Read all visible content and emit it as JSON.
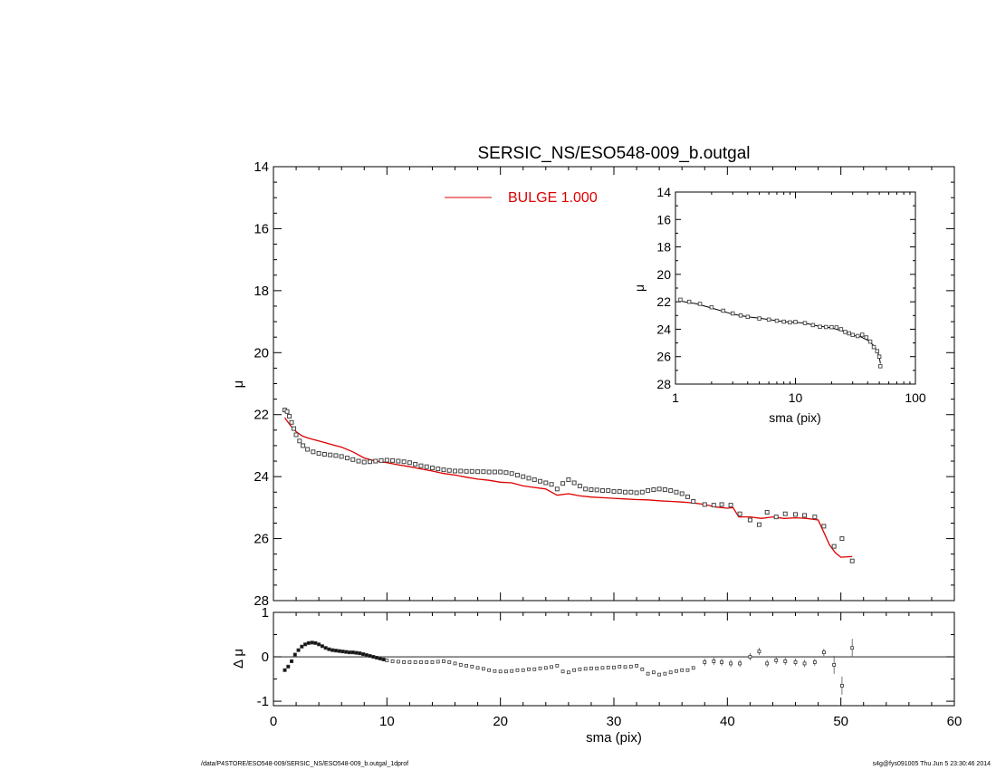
{
  "chart_data": [
    {
      "type": "scatter",
      "title": "SERSIC_NS/ESO548-009_b.outgal",
      "xlabel": "",
      "ylabel": "μ",
      "xlim": [
        0,
        60
      ],
      "ylim": [
        28,
        14
      ],
      "y_inverted": true,
      "yticks": [
        "14",
        "16",
        "18",
        "20",
        "22",
        "24",
        "26",
        "28"
      ],
      "legend": {
        "label": "BULGE  1.000",
        "color": "#dd0000",
        "placement": "top-center"
      },
      "series": [
        {
          "kind": "points",
          "marker": "square",
          "x": [
            1,
            1.2,
            1.4,
            1.6,
            1.8,
            2,
            2.3,
            2.6,
            3,
            3.5,
            4,
            4.5,
            5,
            5.5,
            6,
            6.5,
            7,
            7.5,
            8,
            8.5,
            9,
            9.5,
            10,
            10.5,
            11,
            11.5,
            12,
            12.5,
            13,
            13.5,
            14,
            14.5,
            15,
            15.5,
            16,
            16.5,
            17,
            17.5,
            18,
            18.5,
            19,
            19.5,
            20,
            20.5,
            21,
            21.5,
            22,
            22.5,
            23,
            23.5,
            24,
            24.5,
            25,
            25.5,
            26,
            26.5,
            27,
            27.5,
            28,
            28.5,
            29,
            29.5,
            30,
            30.5,
            31,
            31.5,
            32,
            32.5,
            33,
            33.5,
            34,
            34.5,
            35,
            35.5,
            36,
            36.5,
            37,
            38,
            38.8,
            39.5,
            40.3,
            41.1,
            42,
            42.8,
            43.5,
            44.3,
            45.1,
            46,
            46.8,
            47.7,
            48.5,
            49.4,
            50.1,
            51
          ],
          "y": [
            21.85,
            21.9,
            22.05,
            22.25,
            22.45,
            22.65,
            22.85,
            23.0,
            23.12,
            23.2,
            23.25,
            23.28,
            23.3,
            23.32,
            23.35,
            23.4,
            23.45,
            23.5,
            23.53,
            23.52,
            23.5,
            23.48,
            23.47,
            23.48,
            23.5,
            23.52,
            23.55,
            23.6,
            23.65,
            23.68,
            23.72,
            23.75,
            23.78,
            23.8,
            23.82,
            23.82,
            23.83,
            23.83,
            23.84,
            23.84,
            23.85,
            23.85,
            23.85,
            23.87,
            23.9,
            23.95,
            24.0,
            24.05,
            24.1,
            24.15,
            24.2,
            24.25,
            24.4,
            24.22,
            24.1,
            24.2,
            24.3,
            24.4,
            24.42,
            24.43,
            24.45,
            24.45,
            24.48,
            24.48,
            24.5,
            24.5,
            24.52,
            24.5,
            24.45,
            24.42,
            24.4,
            24.42,
            24.45,
            24.5,
            24.55,
            24.65,
            24.8,
            24.9,
            24.92,
            24.9,
            24.92,
            25.2,
            25.4,
            25.55,
            25.15,
            25.3,
            25.2,
            25.22,
            25.25,
            25.3,
            25.6,
            26.25,
            26.0,
            26.72
          ]
        },
        {
          "kind": "line",
          "color": "#dd0000",
          "x": [
            1,
            1.5,
            2,
            2.5,
            3,
            3.5,
            4,
            5,
            6,
            7,
            8,
            9,
            10,
            11,
            12,
            13,
            14,
            15,
            16,
            17,
            18,
            19,
            20,
            21,
            22,
            23,
            24,
            24.5,
            25,
            26,
            27,
            28,
            29,
            30,
            31,
            32,
            33,
            34,
            35,
            36,
            37,
            38,
            39,
            40,
            40.5,
            41,
            42,
            43,
            44,
            45,
            46,
            47,
            48,
            48.5,
            49,
            49.5,
            50,
            51
          ],
          "y": [
            22.1,
            22.35,
            22.55,
            22.68,
            22.75,
            22.8,
            22.85,
            22.95,
            23.05,
            23.2,
            23.4,
            23.5,
            23.55,
            23.62,
            23.68,
            23.75,
            23.82,
            23.9,
            23.95,
            24.02,
            24.08,
            24.12,
            24.18,
            24.2,
            24.3,
            24.35,
            24.4,
            24.5,
            24.6,
            24.55,
            24.62,
            24.66,
            24.68,
            24.7,
            24.72,
            24.74,
            24.75,
            24.78,
            24.8,
            24.82,
            24.85,
            24.9,
            24.98,
            25.02,
            25.0,
            25.3,
            25.3,
            25.35,
            25.3,
            25.35,
            25.33,
            25.35,
            25.4,
            25.8,
            26.2,
            26.45,
            26.6,
            26.58
          ]
        }
      ]
    },
    {
      "type": "scatter",
      "title": "",
      "xlabel": "sma (pix)",
      "ylabel": "μ",
      "x_scale": "log",
      "xlim": [
        1,
        100
      ],
      "ylim": [
        28,
        14
      ],
      "y_inverted": true,
      "xticks": [
        "1",
        "10",
        "100"
      ],
      "yticks": [
        "14",
        "16",
        "18",
        "20",
        "22",
        "24",
        "26",
        "28"
      ],
      "series": [
        {
          "kind": "points",
          "marker": "square",
          "x": [
            1.1,
            1.3,
            1.6,
            2,
            2.5,
            3,
            3.5,
            4,
            5,
            6,
            7,
            8,
            9,
            10,
            12,
            14,
            16,
            18,
            20,
            22,
            24,
            26,
            28,
            30,
            33,
            36,
            39,
            42,
            45,
            48,
            50,
            51
          ],
          "y": [
            21.85,
            22.0,
            22.15,
            22.4,
            22.65,
            22.85,
            23.0,
            23.1,
            23.22,
            23.3,
            23.38,
            23.45,
            23.5,
            23.47,
            23.55,
            23.7,
            23.82,
            23.84,
            23.85,
            23.87,
            24.0,
            24.2,
            24.3,
            24.42,
            24.5,
            24.4,
            24.6,
            24.9,
            25.3,
            25.6,
            26.0,
            26.7
          ]
        },
        {
          "kind": "line",
          "color": "#000000",
          "x": [
            1.1,
            1.5,
            2,
            3,
            4,
            5,
            6,
            8,
            10,
            12,
            15,
            20,
            25,
            30,
            35,
            40,
            45,
            48,
            50,
            51
          ],
          "y": [
            21.95,
            22.15,
            22.45,
            22.9,
            23.1,
            23.2,
            23.3,
            23.45,
            23.5,
            23.55,
            23.75,
            23.9,
            24.15,
            24.45,
            24.55,
            24.8,
            25.2,
            25.6,
            26.0,
            26.5
          ]
        }
      ]
    },
    {
      "type": "scatter",
      "title": "",
      "xlabel": "sma (pix)",
      "ylabel": "Δ μ",
      "xlim": [
        0,
        60
      ],
      "ylim": [
        -1.1,
        1.0
      ],
      "xticks": [
        "0",
        "10",
        "20",
        "30",
        "40",
        "50",
        "60"
      ],
      "yticks": [
        "-1",
        "0",
        "1"
      ],
      "reference_line": 0,
      "series": [
        {
          "kind": "points",
          "marker": "square-errorbar",
          "x": [
            1,
            1.3,
            1.6,
            1.9,
            2.2,
            2.5,
            2.8,
            3.1,
            3.4,
            3.7,
            4,
            4.3,
            4.6,
            4.9,
            5.2,
            5.5,
            5.8,
            6.1,
            6.4,
            6.7,
            7,
            7.3,
            7.6,
            7.9,
            8.2,
            8.5,
            8.8,
            9.1,
            9.4,
            9.7,
            10,
            10.5,
            11,
            11.5,
            12,
            12.5,
            13,
            13.5,
            14,
            14.5,
            15,
            15.5,
            16,
            16.5,
            17,
            17.5,
            18,
            18.5,
            19,
            19.5,
            20,
            20.5,
            21,
            21.5,
            22,
            22.5,
            23,
            23.5,
            24,
            24.5,
            25,
            25.5,
            26,
            26.5,
            27,
            27.5,
            28,
            28.5,
            29,
            29.5,
            30,
            30.5,
            31,
            31.5,
            32,
            32.5,
            33,
            33.5,
            34,
            34.5,
            35,
            35.5,
            36,
            36.5,
            37,
            38,
            38.8,
            39.5,
            40.3,
            41.1,
            42,
            42.8,
            43.5,
            44.3,
            45.1,
            46,
            46.8,
            47.7,
            48.5,
            49.4,
            50.1,
            51
          ],
          "y": [
            -0.3,
            -0.22,
            -0.1,
            0.05,
            0.15,
            0.23,
            0.28,
            0.31,
            0.32,
            0.31,
            0.28,
            0.24,
            0.2,
            0.17,
            0.15,
            0.14,
            0.13,
            0.12,
            0.11,
            0.1,
            0.1,
            0.09,
            0.08,
            0.06,
            0.04,
            0.02,
            0.0,
            -0.02,
            -0.04,
            -0.06,
            -0.08,
            -0.1,
            -0.11,
            -0.12,
            -0.12,
            -0.12,
            -0.12,
            -0.12,
            -0.12,
            -0.11,
            -0.1,
            -0.12,
            -0.15,
            -0.18,
            -0.2,
            -0.22,
            -0.25,
            -0.27,
            -0.3,
            -0.32,
            -0.33,
            -0.33,
            -0.32,
            -0.3,
            -0.3,
            -0.28,
            -0.28,
            -0.26,
            -0.25,
            -0.23,
            -0.2,
            -0.33,
            -0.35,
            -0.3,
            -0.28,
            -0.27,
            -0.26,
            -0.26,
            -0.25,
            -0.24,
            -0.24,
            -0.22,
            -0.23,
            -0.22,
            -0.2,
            -0.28,
            -0.38,
            -0.35,
            -0.4,
            -0.38,
            -0.35,
            -0.32,
            -0.3,
            -0.3,
            -0.25,
            -0.12,
            -0.1,
            -0.12,
            -0.15,
            -0.15,
            0.0,
            0.12,
            -0.15,
            -0.08,
            -0.1,
            -0.12,
            -0.15,
            -0.12,
            0.1,
            -0.18,
            -0.65,
            0.2
          ]
        }
      ]
    }
  ],
  "footer": {
    "left": "/data/P4STORE/ESO548-009/SERSIC_NS/ESO548-009_b.outgal_1dprof",
    "right": "s4g@fys091005  Thu Jun  5 23:30:46 2014"
  }
}
